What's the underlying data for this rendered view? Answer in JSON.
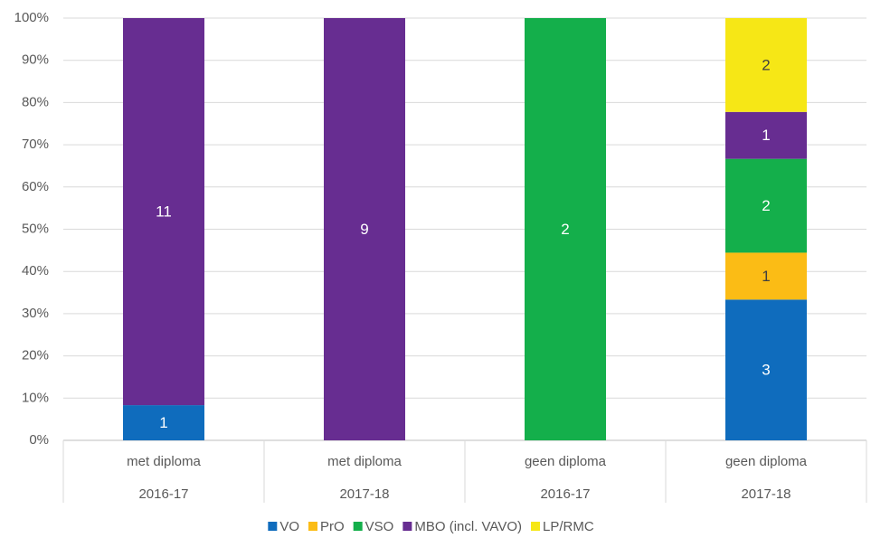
{
  "chart_data": {
    "type": "stacked_percent_bar",
    "categories": [
      [
        "met diploma",
        "2016-17"
      ],
      [
        "met diploma",
        "2017-18"
      ],
      [
        "geen diploma",
        "2016-17"
      ],
      [
        "geen diploma",
        "2017-18"
      ]
    ],
    "series": [
      {
        "name": "VO",
        "color": "#0f6cbd",
        "values": [
          1,
          null,
          null,
          3
        ]
      },
      {
        "name": "PrO",
        "color": "#fbbc15",
        "values": [
          null,
          null,
          null,
          1
        ]
      },
      {
        "name": "VSO",
        "color": "#14af4b",
        "values": [
          null,
          null,
          2,
          2
        ]
      },
      {
        "name": "MBO (incl. VAVO)",
        "color": "#672d91",
        "values": [
          11,
          9,
          null,
          1
        ]
      },
      {
        "name": "LP/RMC",
        "color": "#f6e716",
        "values": [
          null,
          null,
          null,
          2
        ]
      }
    ],
    "ylim": [
      0,
      100
    ],
    "yticks": [
      {
        "value": 0,
        "label": "0%"
      },
      {
        "value": 10,
        "label": "10%"
      },
      {
        "value": 20,
        "label": "20%"
      },
      {
        "value": 30,
        "label": "30%"
      },
      {
        "value": 40,
        "label": "40%"
      },
      {
        "value": 50,
        "label": "50%"
      },
      {
        "value": 60,
        "label": "60%"
      },
      {
        "value": 70,
        "label": "70%"
      },
      {
        "value": 80,
        "label": "80%"
      },
      {
        "value": 90,
        "label": "90%"
      },
      {
        "value": 100,
        "label": "100%"
      }
    ],
    "grid": true,
    "legend": "bottom"
  }
}
